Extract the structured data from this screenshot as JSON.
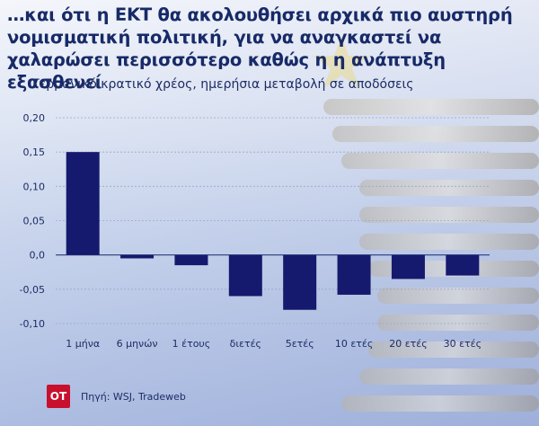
{
  "title": "…και ότι η ΕΚΤ θα ακολουθήσει αρχικά πιο αυστηρή νομισματική πολιτική, για να αναγκαστεί να χαλαρώσει περισσότερο καθώς η η ανάπτυξη εξασθενεί",
  "subtitle": "Γερμανικό κρατικό χρέος, ημερήσια μεταβολή σε αποδόσεις",
  "footer": {
    "logo_text": "ΟΤ",
    "source": "Πηγή: WSJ, Tradeweb"
  },
  "colors": {
    "bar": "#151a6e",
    "title": "#172a68",
    "logo": "#c8102e"
  },
  "chart_data": {
    "type": "bar",
    "categories": [
      "1 μήνα",
      "6 μηνών",
      "1 έτους",
      "διετές",
      "5ετές",
      "10 ετές",
      "20 ετές",
      "30 ετές"
    ],
    "values": [
      0.15,
      -0.005,
      -0.015,
      -0.06,
      -0.08,
      -0.058,
      -0.035,
      -0.03
    ],
    "ylim": [
      -0.1,
      0.2
    ],
    "yticks": [
      0.2,
      0.15,
      0.1,
      0.05,
      0.0,
      -0.05,
      -0.1
    ],
    "ytick_labels": [
      "0,20",
      "0,15",
      "0,10",
      "0,05",
      "0,0",
      "-0,05",
      "-0,10"
    ],
    "title": "Γερμανικό κρατικό χρέος, ημερήσια μεταβολή σε αποδόσεις",
    "xlabel": "",
    "ylabel": "",
    "grid": true,
    "legend": "none"
  }
}
